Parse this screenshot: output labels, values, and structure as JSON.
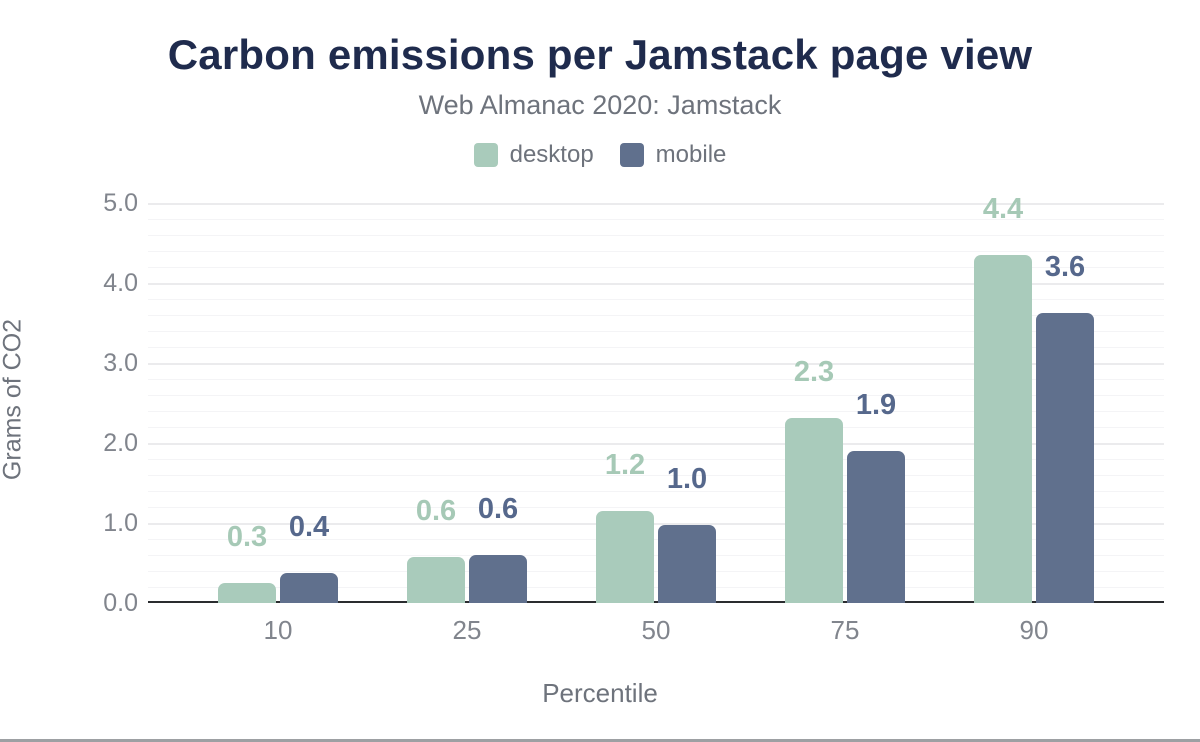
{
  "chart_data": {
    "type": "bar",
    "title": "Carbon emissions per Jamstack page view",
    "subtitle": "Web Almanac 2020: Jamstack",
    "xlabel": "Percentile",
    "ylabel": "Grams of CO2",
    "categories": [
      "10",
      "25",
      "50",
      "75",
      "90"
    ],
    "series": [
      {
        "name": "desktop",
        "color": "#a9cbbb",
        "label_color": "#a6c9b6",
        "values": [
          0.3,
          0.6,
          1.2,
          2.3,
          4.4
        ],
        "bar_values": [
          0.25,
          0.57,
          1.15,
          2.31,
          4.35
        ]
      },
      {
        "name": "mobile",
        "color": "#60708d",
        "label_color": "#56688c",
        "values": [
          0.4,
          0.6,
          1.0,
          1.9,
          3.6
        ],
        "bar_values": [
          0.38,
          0.6,
          0.97,
          1.9,
          3.62
        ]
      }
    ],
    "ylim": [
      0,
      5
    ],
    "ytick_labels": [
      "0.0",
      "1.0",
      "2.0",
      "3.0",
      "4.0",
      "5.0"
    ],
    "minor_grid_step": 0.2,
    "grid": true,
    "legend_position": "top",
    "value_labels": true
  },
  "style": {
    "title_color": "#1f2b4d",
    "muted_text_color": "#6e737c",
    "tick_color": "#81858d",
    "grid_minor_color": "#f4f4f6",
    "grid_major_color": "#ebebed",
    "baseline_color": "#2a2c2f",
    "bottom_divider_color": "#9da0a3"
  }
}
